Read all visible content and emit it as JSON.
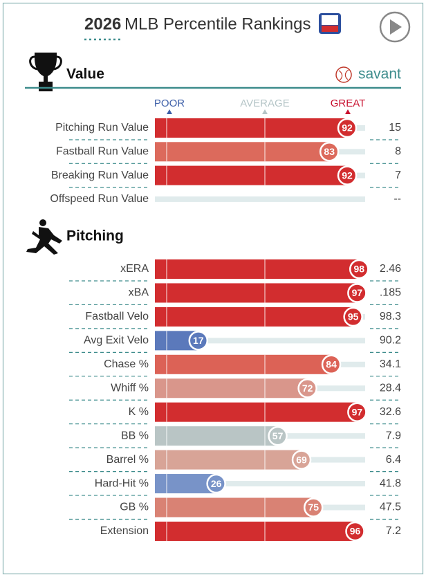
{
  "header": {
    "year": "2026",
    "title": "MLB Percentile Rankings"
  },
  "brand": "savant",
  "chart_data": [
    {
      "type": "bar",
      "title": "Value",
      "scale_labels": [
        "POOR",
        "AVERAGE",
        "GREAT"
      ],
      "categories": [
        "Pitching Run Value",
        "Fastball Run Value",
        "Breaking Run Value",
        "Offspeed Run Value"
      ],
      "values": [
        92,
        83,
        92,
        null
      ],
      "colors": [
        "#d22d2f",
        "#dc6a5c",
        "#d22d2f",
        null
      ],
      "stats": [
        "15",
        "8",
        "7",
        "--"
      ],
      "xlim": [
        0,
        100
      ]
    },
    {
      "type": "bar",
      "title": "Pitching",
      "categories": [
        "xERA",
        "xBA",
        "Fastball Velo",
        "Avg Exit Velo",
        "Chase %",
        "Whiff %",
        "K %",
        "BB %",
        "Barrel %",
        "Hard-Hit %",
        "GB %",
        "Extension"
      ],
      "values": [
        98,
        97,
        95,
        17,
        84,
        72,
        97,
        57,
        69,
        26,
        75,
        96
      ],
      "colors": [
        "#d22d2f",
        "#d22d2f",
        "#d22d2f",
        "#5b79bb",
        "#dc6256",
        "#d9968b",
        "#d22d2f",
        "#b9c5c5",
        "#d8a497",
        "#7893c8",
        "#d98274",
        "#d22d2f"
      ],
      "stats": [
        "2.46",
        ".185",
        "98.3",
        "90.2",
        "34.1",
        "28.4",
        "32.6",
        "7.9",
        "6.4",
        "41.8",
        "47.5",
        "7.2"
      ],
      "xlim": [
        0,
        100
      ]
    }
  ]
}
